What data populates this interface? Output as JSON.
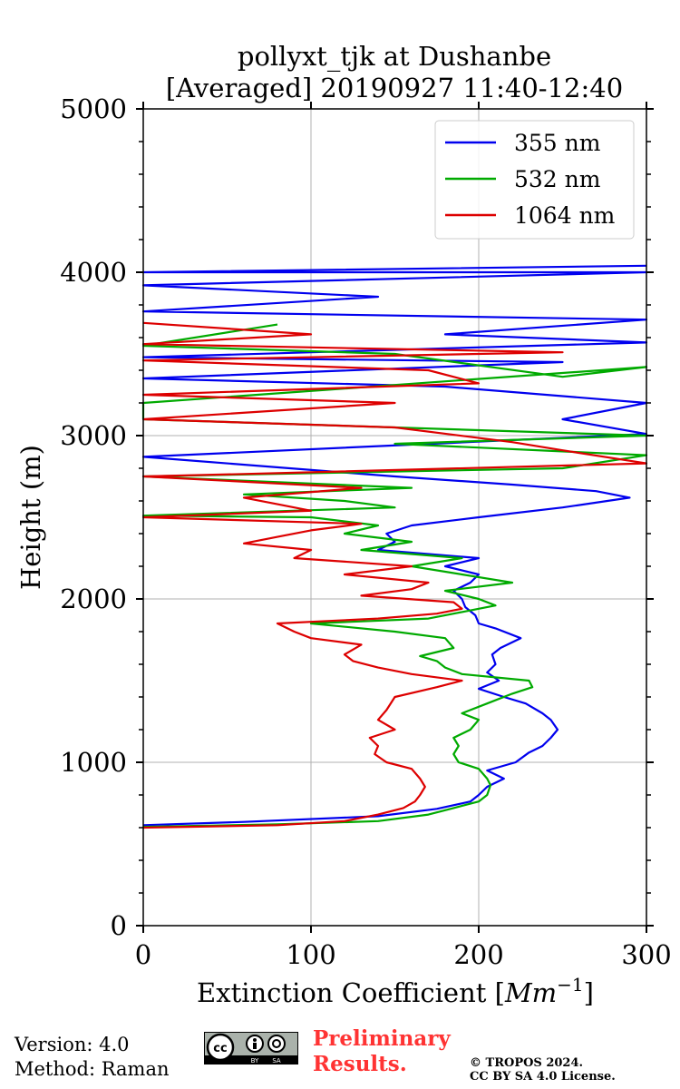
{
  "chart_data": {
    "type": "line",
    "title_line1": "pollyxt_tjk at Dushanbe",
    "title_line2": "[Averaged] 20190927 11:40-12:40",
    "xlabel": "Extinction Coefficient [",
    "xlabel_unit": "Mm",
    "xlabel_exp": "−1",
    "xlabel_close": "]",
    "ylabel": "Height (m)",
    "xlim": [
      0,
      300
    ],
    "ylim": [
      0,
      5000
    ],
    "xticks": [
      "0",
      "100",
      "200",
      "300"
    ],
    "yticks": [
      "0",
      "1000",
      "2000",
      "3000",
      "4000",
      "5000"
    ],
    "xtick_values": [
      0,
      100,
      200,
      300
    ],
    "ytick_values": [
      0,
      1000,
      2000,
      3000,
      4000,
      5000
    ],
    "grid": true,
    "legend_position": "top-right",
    "series": [
      {
        "name": "355 nm",
        "color": "#0000ee",
        "points": [
          [
            0,
            615
          ],
          [
            60,
            635
          ],
          [
            140,
            670
          ],
          [
            175,
            715
          ],
          [
            195,
            760
          ],
          [
            200,
            800
          ],
          [
            205,
            850
          ],
          [
            215,
            900
          ],
          [
            205,
            950
          ],
          [
            222,
            1000
          ],
          [
            230,
            1060
          ],
          [
            238,
            1100
          ],
          [
            243,
            1150
          ],
          [
            247,
            1200
          ],
          [
            243,
            1260
          ],
          [
            238,
            1300
          ],
          [
            228,
            1360
          ],
          [
            215,
            1400
          ],
          [
            200,
            1450
          ],
          [
            212,
            1500
          ],
          [
            205,
            1550
          ],
          [
            210,
            1600
          ],
          [
            208,
            1660
          ],
          [
            213,
            1700
          ],
          [
            225,
            1760
          ],
          [
            210,
            1820
          ],
          [
            200,
            1850
          ],
          [
            198,
            1900
          ],
          [
            192,
            1950
          ],
          [
            190,
            2000
          ],
          [
            185,
            2050
          ],
          [
            195,
            2100
          ],
          [
            200,
            2150
          ],
          [
            180,
            2200
          ],
          [
            200,
            2250
          ],
          [
            140,
            2300
          ],
          [
            150,
            2350
          ],
          [
            145,
            2400
          ],
          [
            160,
            2450
          ],
          [
            200,
            2500
          ],
          [
            250,
            2560
          ],
          [
            290,
            2620
          ],
          [
            270,
            2660
          ],
          [
            220,
            2700
          ],
          [
            150,
            2750
          ],
          [
            0,
            2870
          ],
          [
            300,
            3010
          ],
          [
            250,
            3100
          ],
          [
            300,
            3200
          ],
          [
            180,
            3300
          ],
          [
            0,
            3350
          ],
          [
            250,
            3450
          ],
          [
            0,
            3480
          ],
          [
            300,
            3570
          ],
          [
            180,
            3620
          ],
          [
            300,
            3710
          ],
          [
            0,
            3760
          ],
          [
            140,
            3850
          ],
          [
            0,
            3920
          ],
          [
            300,
            4000
          ],
          [
            0,
            4000
          ],
          [
            300,
            4040
          ]
        ]
      },
      {
        "name": "532 nm",
        "color": "#00aa00",
        "points": [
          [
            0,
            605
          ],
          [
            80,
            620
          ],
          [
            140,
            640
          ],
          [
            170,
            680
          ],
          [
            185,
            720
          ],
          [
            200,
            760
          ],
          [
            205,
            800
          ],
          [
            207,
            860
          ],
          [
            205,
            900
          ],
          [
            200,
            960
          ],
          [
            188,
            1000
          ],
          [
            185,
            1050
          ],
          [
            188,
            1100
          ],
          [
            185,
            1150
          ],
          [
            195,
            1200
          ],
          [
            200,
            1260
          ],
          [
            190,
            1300
          ],
          [
            205,
            1360
          ],
          [
            220,
            1420
          ],
          [
            232,
            1460
          ],
          [
            230,
            1500
          ],
          [
            190,
            1540
          ],
          [
            180,
            1580
          ],
          [
            175,
            1620
          ],
          [
            165,
            1650
          ],
          [
            185,
            1700
          ],
          [
            180,
            1760
          ],
          [
            150,
            1800
          ],
          [
            100,
            1850
          ],
          [
            170,
            1880
          ],
          [
            190,
            1920
          ],
          [
            210,
            1960
          ],
          [
            200,
            2000
          ],
          [
            180,
            2050
          ],
          [
            220,
            2100
          ],
          [
            190,
            2150
          ],
          [
            160,
            2200
          ],
          [
            190,
            2250
          ],
          [
            130,
            2300
          ],
          [
            160,
            2350
          ],
          [
            120,
            2400
          ],
          [
            140,
            2450
          ],
          [
            100,
            2500
          ],
          [
            0,
            2510
          ],
          [
            150,
            2560
          ],
          [
            120,
            2600
          ],
          [
            60,
            2640
          ],
          [
            160,
            2680
          ],
          [
            0,
            2750
          ],
          [
            250,
            2800
          ],
          [
            300,
            2880
          ],
          [
            150,
            2950
          ],
          [
            300,
            3000
          ],
          [
            0,
            3100
          ],
          [
            0,
            3200
          ],
          [
            300,
            3420
          ],
          [
            250,
            3360
          ],
          [
            150,
            3500
          ],
          [
            0,
            3550
          ],
          [
            80,
            3680
          ]
        ]
      },
      {
        "name": "1064 nm",
        "color": "#dd0000",
        "points": [
          [
            0,
            600
          ],
          [
            80,
            615
          ],
          [
            120,
            640
          ],
          [
            140,
            680
          ],
          [
            155,
            720
          ],
          [
            162,
            760
          ],
          [
            165,
            800
          ],
          [
            168,
            850
          ],
          [
            165,
            900
          ],
          [
            160,
            960
          ],
          [
            145,
            1000
          ],
          [
            138,
            1050
          ],
          [
            140,
            1100
          ],
          [
            135,
            1150
          ],
          [
            150,
            1200
          ],
          [
            140,
            1260
          ],
          [
            145,
            1320
          ],
          [
            150,
            1400
          ],
          [
            175,
            1460
          ],
          [
            190,
            1500
          ],
          [
            160,
            1540
          ],
          [
            140,
            1580
          ],
          [
            125,
            1620
          ],
          [
            120,
            1660
          ],
          [
            130,
            1720
          ],
          [
            100,
            1760
          ],
          [
            90,
            1800
          ],
          [
            80,
            1850
          ],
          [
            140,
            1880
          ],
          [
            175,
            1910
          ],
          [
            190,
            1940
          ],
          [
            185,
            1980
          ],
          [
            130,
            2020
          ],
          [
            160,
            2060
          ],
          [
            170,
            2100
          ],
          [
            120,
            2150
          ],
          [
            160,
            2200
          ],
          [
            90,
            2250
          ],
          [
            100,
            2300
          ],
          [
            60,
            2340
          ],
          [
            80,
            2380
          ],
          [
            100,
            2420
          ],
          [
            130,
            2460
          ],
          [
            0,
            2500
          ],
          [
            100,
            2540
          ],
          [
            80,
            2580
          ],
          [
            60,
            2620
          ],
          [
            130,
            2680
          ],
          [
            0,
            2750
          ],
          [
            80,
            2770
          ],
          [
            300,
            2830
          ],
          [
            250,
            2910
          ],
          [
            220,
            2960
          ],
          [
            150,
            3050
          ],
          [
            0,
            3100
          ],
          [
            150,
            3200
          ],
          [
            0,
            3250
          ],
          [
            200,
            3320
          ],
          [
            170,
            3400
          ],
          [
            0,
            3460
          ],
          [
            250,
            3510
          ],
          [
            0,
            3560
          ],
          [
            100,
            3620
          ],
          [
            0,
            3690
          ]
        ]
      }
    ]
  },
  "footer": {
    "version": "Version: 4.0",
    "method": "Method: Raman",
    "preliminary_line1": "Preliminary",
    "preliminary_line2": "Results.",
    "copyright_line1": "© TROPOS 2024.",
    "copyright_line2": "CC BY SA 4.0 License.",
    "cc_main": "cc",
    "cc_by": "BY",
    "cc_sa": "SA"
  }
}
